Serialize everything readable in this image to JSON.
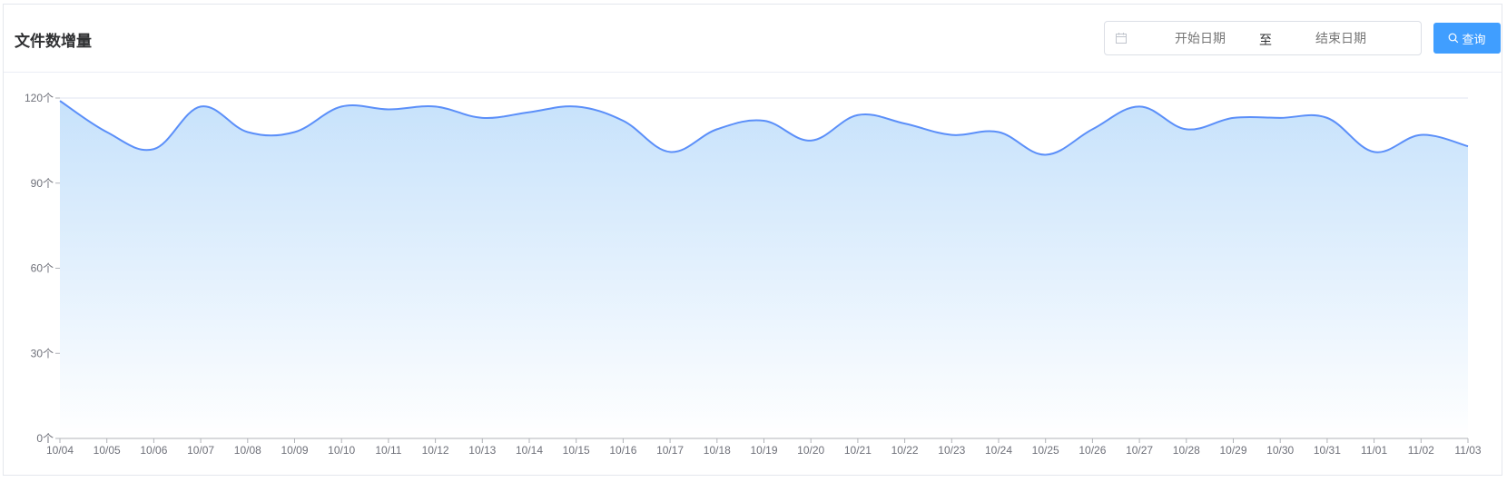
{
  "header": {
    "title": "文件数增量",
    "start_placeholder": "开始日期",
    "range_separator": "至",
    "end_placeholder": "结束日期",
    "query_label": "查询"
  },
  "colors": {
    "accent": "#409eff",
    "line": "#5b8ff9",
    "area_top": "#c7e2fb",
    "area_bottom": "#ffffff"
  },
  "chart_data": {
    "type": "area",
    "smooth": true,
    "x": [
      "10/04",
      "10/05",
      "10/06",
      "10/07",
      "10/08",
      "10/09",
      "10/10",
      "10/11",
      "10/12",
      "10/13",
      "10/14",
      "10/15",
      "10/16",
      "10/17",
      "10/18",
      "10/19",
      "10/20",
      "10/21",
      "10/22",
      "10/23",
      "10/24",
      "10/25",
      "10/26",
      "10/27",
      "10/28",
      "10/29",
      "10/30",
      "10/31",
      "11/01",
      "11/02",
      "11/03"
    ],
    "series": [
      {
        "values": [
          119,
          108,
          102,
          117,
          108,
          108,
          117,
          116,
          117,
          113,
          115,
          117,
          112,
          101,
          109,
          112,
          105,
          114,
          111,
          107,
          108,
          100,
          109,
          117,
          109,
          113,
          113,
          113,
          101,
          107,
          103
        ]
      }
    ],
    "ylim": [
      0,
      120
    ],
    "yticks": [
      0,
      30,
      60,
      90,
      120
    ],
    "yunit": "个",
    "grid": true,
    "xlabel": "",
    "ylabel": ""
  }
}
